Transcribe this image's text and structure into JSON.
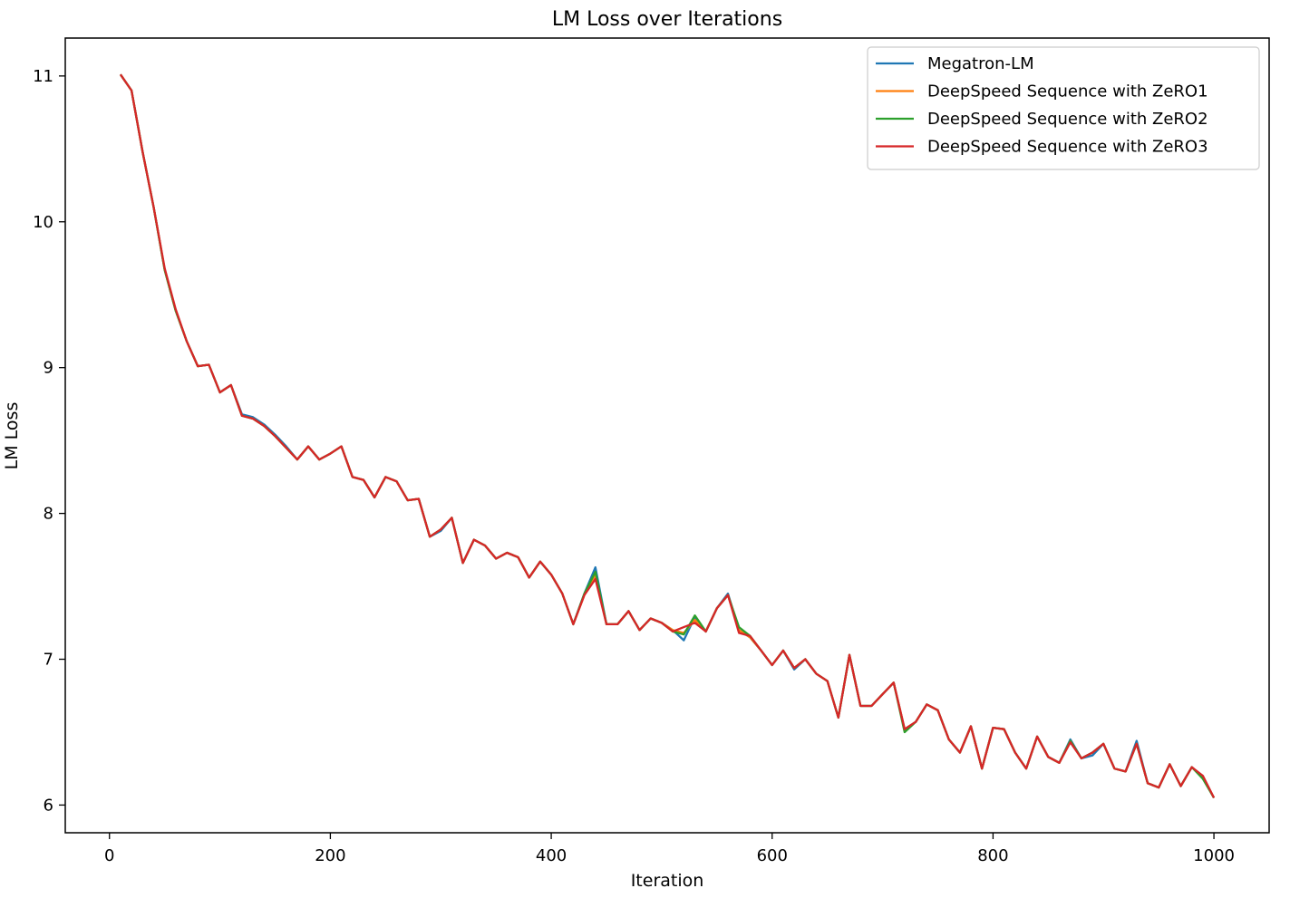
{
  "chart_data": {
    "type": "line",
    "title": "LM Loss over Iterations",
    "xlabel": "Iteration",
    "ylabel": "LM Loss",
    "xlim": [
      -40,
      1050
    ],
    "ylim": [
      5.81,
      11.26
    ],
    "xticks": [
      0,
      200,
      400,
      600,
      800,
      1000
    ],
    "yticks": [
      6,
      7,
      8,
      9,
      10,
      11
    ],
    "grid": false,
    "legend_position": "top-right",
    "x": [
      10,
      20,
      30,
      40,
      50,
      60,
      70,
      80,
      90,
      100,
      110,
      120,
      130,
      140,
      150,
      160,
      170,
      180,
      190,
      200,
      210,
      220,
      230,
      240,
      250,
      260,
      270,
      280,
      290,
      300,
      310,
      320,
      330,
      340,
      350,
      360,
      370,
      380,
      390,
      400,
      410,
      420,
      430,
      440,
      450,
      460,
      470,
      480,
      490,
      500,
      510,
      520,
      530,
      540,
      550,
      560,
      570,
      580,
      590,
      600,
      610,
      620,
      630,
      640,
      650,
      660,
      670,
      680,
      690,
      700,
      710,
      720,
      730,
      740,
      750,
      760,
      770,
      780,
      790,
      800,
      810,
      820,
      830,
      840,
      850,
      860,
      870,
      880,
      890,
      900,
      910,
      920,
      930,
      940,
      950,
      960,
      970,
      980,
      990,
      1000
    ],
    "series": [
      {
        "name": "Megatron-LM",
        "color": "#1f77b4",
        "values": [
          11.01,
          10.9,
          10.48,
          10.1,
          9.67,
          9.39,
          9.18,
          9.01,
          9.02,
          8.83,
          8.88,
          8.68,
          8.66,
          8.61,
          8.54,
          8.46,
          8.37,
          8.46,
          8.37,
          8.41,
          8.46,
          8.25,
          8.23,
          8.11,
          8.25,
          8.22,
          8.09,
          8.1,
          7.84,
          7.88,
          7.97,
          7.66,
          7.82,
          7.78,
          7.69,
          7.73,
          7.7,
          7.56,
          7.67,
          7.58,
          7.45,
          7.24,
          7.45,
          7.63,
          7.24,
          7.24,
          7.33,
          7.2,
          7.28,
          7.25,
          7.2,
          7.13,
          7.29,
          7.19,
          7.35,
          7.45,
          7.2,
          7.15,
          7.06,
          6.96,
          7.06,
          6.93,
          7.0,
          6.9,
          6.85,
          6.6,
          7.03,
          6.68,
          6.68,
          6.76,
          6.84,
          6.52,
          6.57,
          6.69,
          6.65,
          6.45,
          6.36,
          6.54,
          6.25,
          6.53,
          6.52,
          6.36,
          6.25,
          6.47,
          6.33,
          6.29,
          6.45,
          6.32,
          6.34,
          6.42,
          6.25,
          6.23,
          6.44,
          6.15,
          6.12,
          6.28,
          6.13,
          6.26,
          6.19,
          6.05
        ]
      },
      {
        "name": "DeepSpeed Sequence with ZeRO1",
        "color": "#ff7f0e",
        "values": [
          11.01,
          10.9,
          10.48,
          10.1,
          9.67,
          9.39,
          9.18,
          9.01,
          9.02,
          8.83,
          8.88,
          8.67,
          8.65,
          8.6,
          8.53,
          8.45,
          8.37,
          8.46,
          8.37,
          8.41,
          8.46,
          8.25,
          8.23,
          8.11,
          8.25,
          8.22,
          8.09,
          8.1,
          7.84,
          7.89,
          7.97,
          7.66,
          7.82,
          7.78,
          7.69,
          7.73,
          7.7,
          7.56,
          7.67,
          7.58,
          7.45,
          7.24,
          7.44,
          7.58,
          7.24,
          7.24,
          7.33,
          7.2,
          7.28,
          7.25,
          7.2,
          7.18,
          7.27,
          7.19,
          7.35,
          7.44,
          7.2,
          7.15,
          7.06,
          6.96,
          7.06,
          6.94,
          7.0,
          6.9,
          6.85,
          6.6,
          7.03,
          6.68,
          6.68,
          6.76,
          6.84,
          6.52,
          6.57,
          6.69,
          6.65,
          6.45,
          6.36,
          6.54,
          6.25,
          6.53,
          6.52,
          6.36,
          6.25,
          6.47,
          6.33,
          6.29,
          6.44,
          6.32,
          6.36,
          6.42,
          6.25,
          6.23,
          6.42,
          6.15,
          6.12,
          6.28,
          6.13,
          6.26,
          6.19,
          6.05
        ]
      },
      {
        "name": "DeepSpeed Sequence with ZeRO2",
        "color": "#2ca02c",
        "values": [
          11.01,
          10.9,
          10.48,
          10.1,
          9.67,
          9.39,
          9.18,
          9.01,
          9.02,
          8.83,
          8.88,
          8.67,
          8.65,
          8.6,
          8.53,
          8.45,
          8.37,
          8.46,
          8.37,
          8.41,
          8.46,
          8.25,
          8.23,
          8.11,
          8.25,
          8.22,
          8.09,
          8.1,
          7.84,
          7.89,
          7.97,
          7.66,
          7.82,
          7.78,
          7.69,
          7.73,
          7.7,
          7.56,
          7.67,
          7.58,
          7.45,
          7.24,
          7.45,
          7.6,
          7.24,
          7.24,
          7.33,
          7.2,
          7.28,
          7.25,
          7.19,
          7.17,
          7.3,
          7.19,
          7.35,
          7.44,
          7.22,
          7.16,
          7.06,
          6.96,
          7.06,
          6.94,
          7.0,
          6.9,
          6.85,
          6.6,
          7.03,
          6.68,
          6.68,
          6.76,
          6.84,
          6.5,
          6.57,
          6.69,
          6.65,
          6.45,
          6.36,
          6.54,
          6.25,
          6.53,
          6.52,
          6.36,
          6.25,
          6.47,
          6.33,
          6.29,
          6.44,
          6.32,
          6.36,
          6.42,
          6.25,
          6.23,
          6.42,
          6.15,
          6.12,
          6.28,
          6.13,
          6.26,
          6.18,
          6.05
        ]
      },
      {
        "name": "DeepSpeed Sequence with ZeRO3",
        "color": "#d62728",
        "values": [
          11.01,
          10.9,
          10.48,
          10.1,
          9.68,
          9.4,
          9.18,
          9.01,
          9.02,
          8.83,
          8.88,
          8.67,
          8.65,
          8.6,
          8.53,
          8.45,
          8.37,
          8.46,
          8.37,
          8.41,
          8.46,
          8.25,
          8.23,
          8.11,
          8.25,
          8.22,
          8.09,
          8.1,
          7.84,
          7.89,
          7.97,
          7.66,
          7.82,
          7.78,
          7.69,
          7.73,
          7.7,
          7.56,
          7.67,
          7.58,
          7.45,
          7.24,
          7.44,
          7.55,
          7.24,
          7.24,
          7.33,
          7.2,
          7.28,
          7.25,
          7.19,
          7.22,
          7.25,
          7.19,
          7.35,
          7.44,
          7.18,
          7.16,
          7.06,
          6.96,
          7.06,
          6.94,
          7.0,
          6.9,
          6.85,
          6.6,
          7.03,
          6.68,
          6.68,
          6.76,
          6.84,
          6.52,
          6.57,
          6.69,
          6.65,
          6.45,
          6.36,
          6.54,
          6.25,
          6.53,
          6.52,
          6.36,
          6.25,
          6.47,
          6.33,
          6.29,
          6.43,
          6.32,
          6.36,
          6.42,
          6.25,
          6.23,
          6.42,
          6.15,
          6.12,
          6.28,
          6.13,
          6.26,
          6.2,
          6.05
        ]
      }
    ]
  }
}
